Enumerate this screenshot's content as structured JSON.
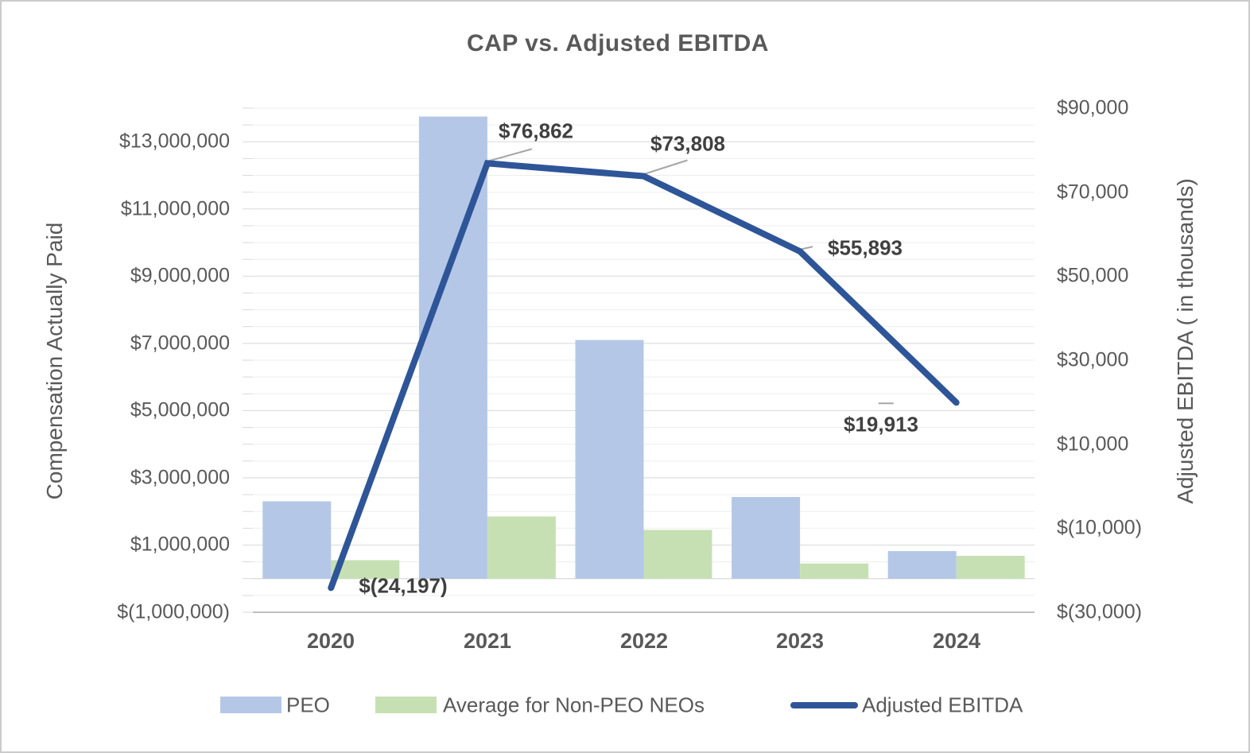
{
  "chart_data": {
    "type": "bar",
    "subtype": "combo-clustered-bar-plus-line",
    "title": "CAP vs. Adjusted EBITDA",
    "categories": [
      "2020",
      "2021",
      "2022",
      "2023",
      "2024"
    ],
    "series": [
      {
        "name": "PEO",
        "type": "bar",
        "axis": "left",
        "color": "#b4c7e7",
        "values": [
          2300000,
          13750000,
          7100000,
          2430000,
          820000
        ]
      },
      {
        "name": "Average for Non-PEO NEOs",
        "type": "bar",
        "axis": "left",
        "color": "#c6e0b4",
        "values": [
          550000,
          1850000,
          1450000,
          450000,
          680000
        ]
      },
      {
        "name": "Adjusted EBITDA",
        "type": "line",
        "axis": "right",
        "color": "#2e5597",
        "values": [
          -24197,
          76862,
          73808,
          55893,
          19913
        ],
        "point_labels": [
          "$(24,197)",
          "$76,862",
          "$73,808",
          "$55,893",
          "$19,913"
        ]
      }
    ],
    "left_axis": {
      "title": "Compensation Actually Paid",
      "min": -1000000,
      "max": 14000000,
      "major_unit": 2000000,
      "minor_unit": 500000,
      "tick_labels": [
        "$13,000,000",
        "$11,000,000",
        "$9,000,000",
        "$7,000,000",
        "$5,000,000",
        "$3,000,000",
        "$1,000,000",
        "$(1,000,000)"
      ],
      "tick_values": [
        13000000,
        11000000,
        9000000,
        7000000,
        5000000,
        3000000,
        1000000,
        -1000000
      ]
    },
    "right_axis": {
      "title": "Adjusted EBITDA ( in thousands)",
      "min": -30000,
      "max": 90000,
      "major_unit": 20000,
      "tick_labels": [
        "$90,000",
        "$70,000",
        "$50,000",
        "$30,000",
        "$10,000",
        "$(10,000)",
        "$(30,000)"
      ],
      "tick_values": [
        90000,
        70000,
        50000,
        30000,
        10000,
        -10000,
        -30000
      ]
    },
    "grid": {
      "minor_color": "#ededed",
      "major_color": "#d9d9d9",
      "zero_line_color": "#d0d0d0",
      "baseline_color": "#bfbfbf"
    },
    "leader_line_color": "#a6a6a6",
    "legend_position": "bottom"
  }
}
